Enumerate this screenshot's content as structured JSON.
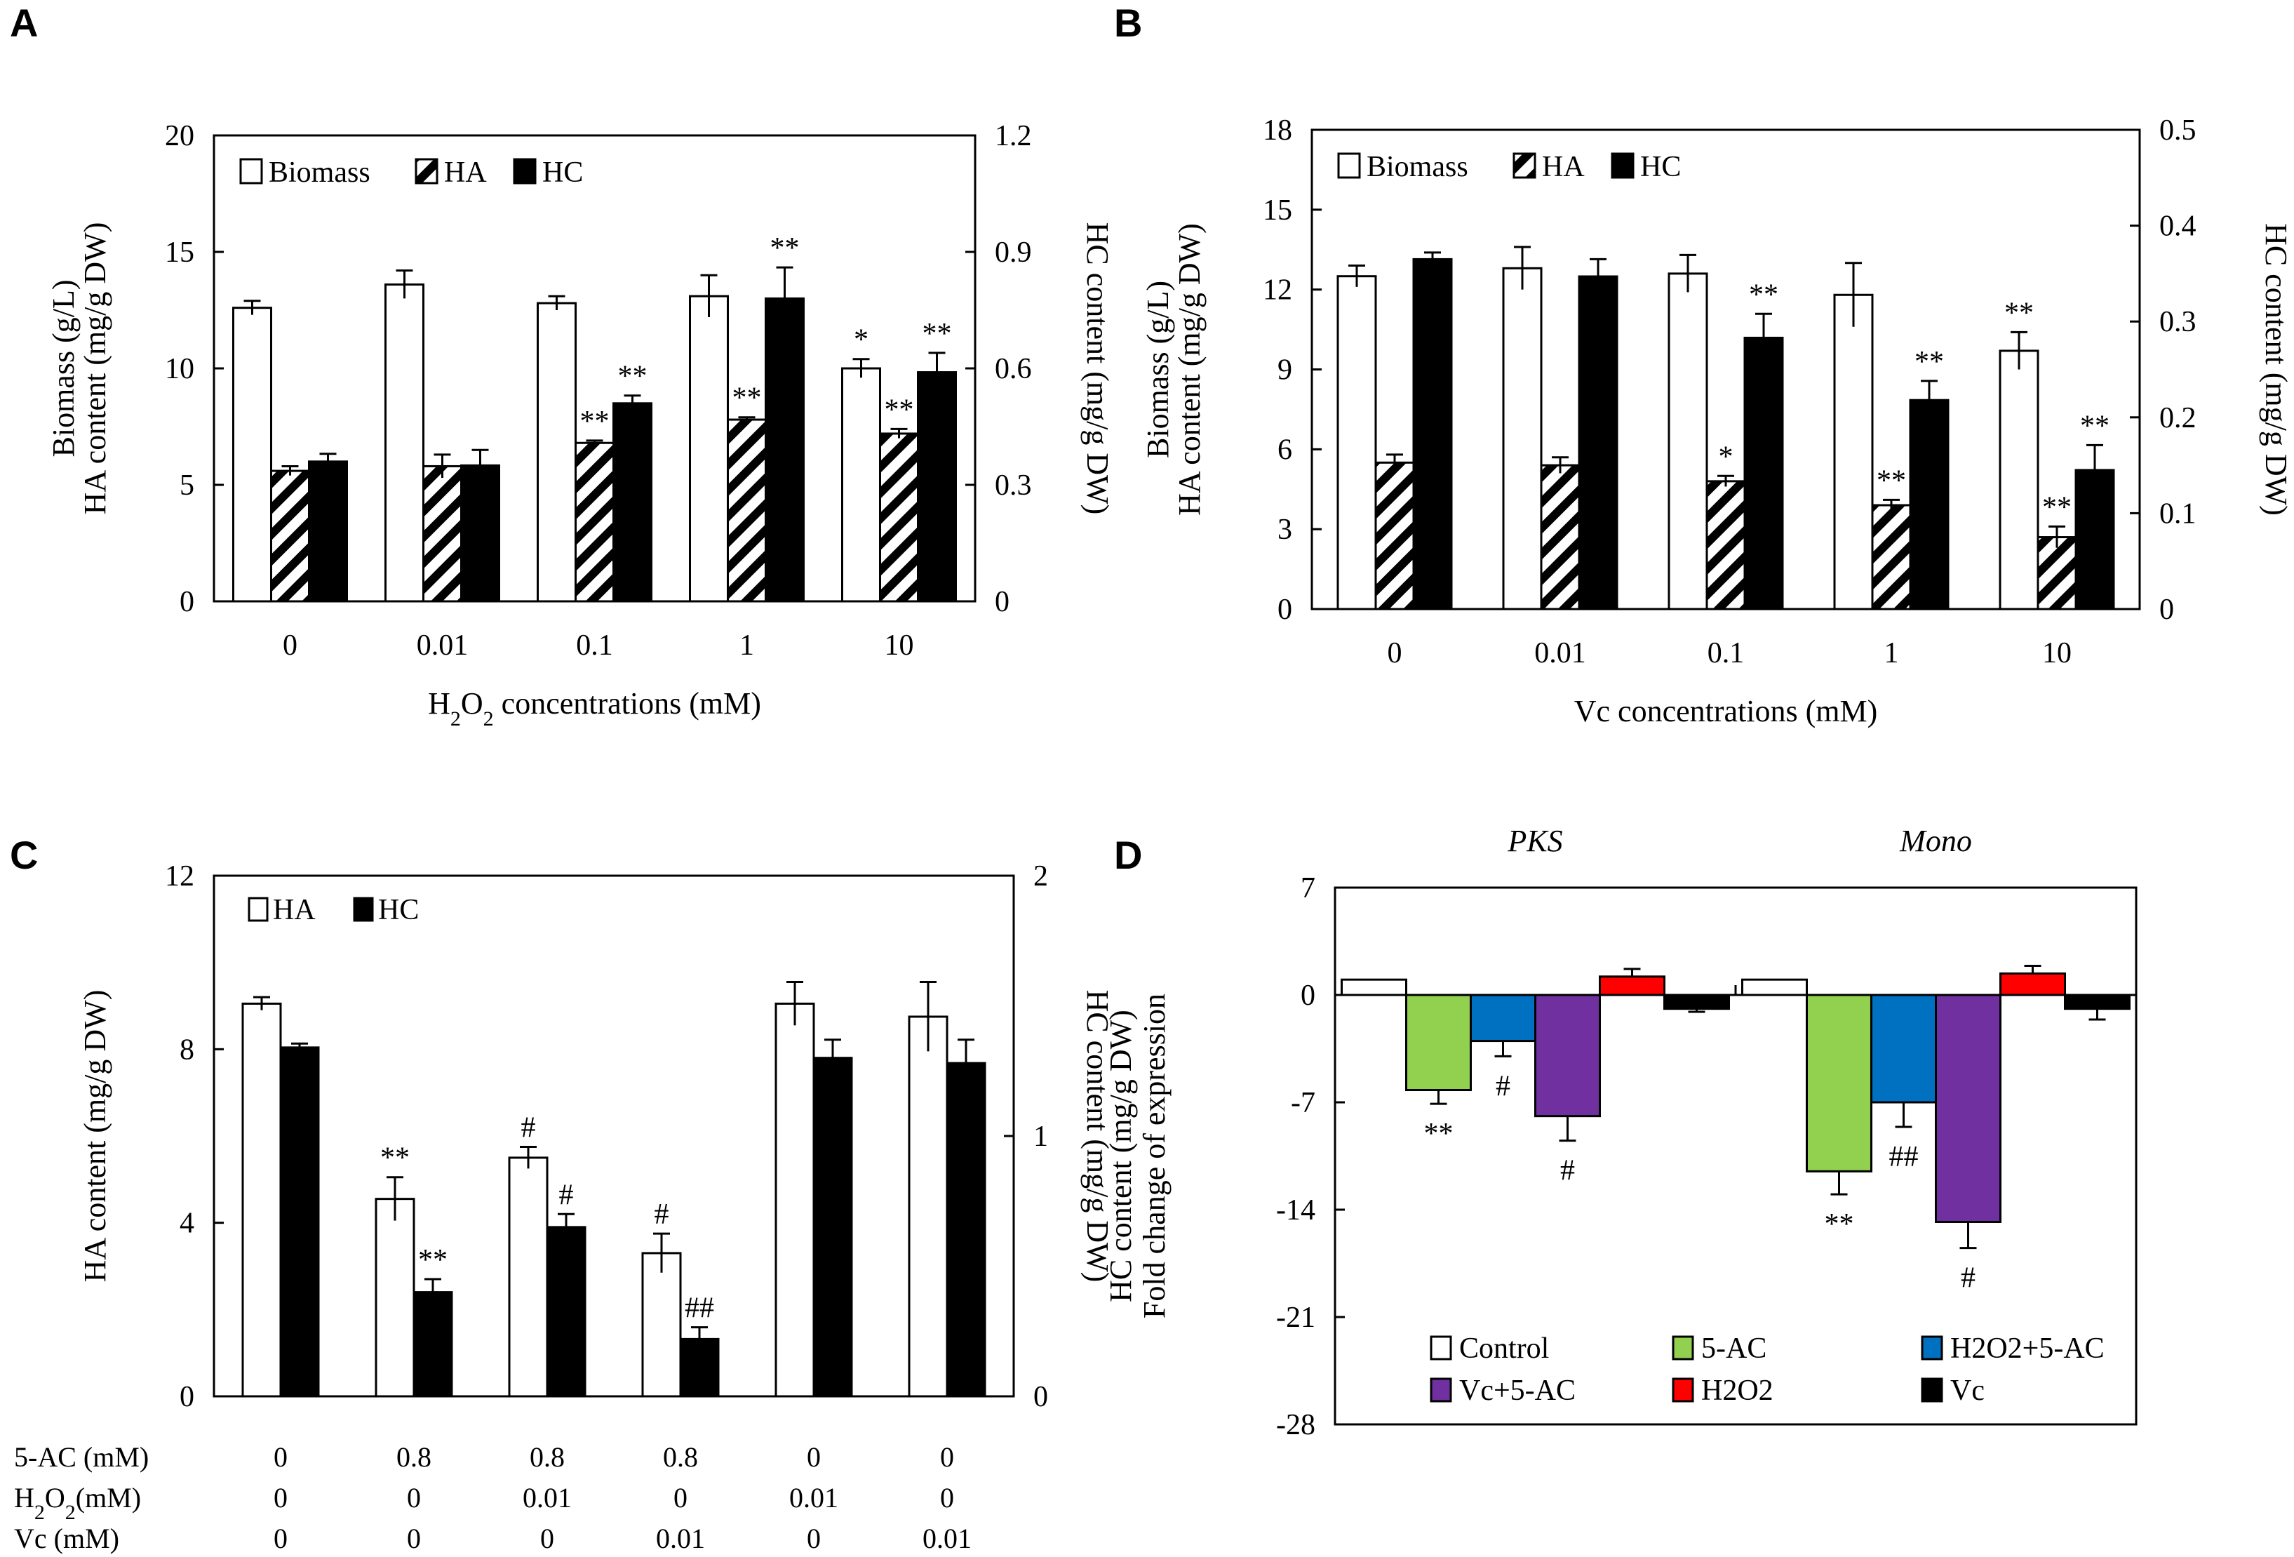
{
  "figure": {
    "panels": [
      "A",
      "B",
      "C",
      "D"
    ]
  },
  "chart_data": [
    {
      "panel": "A",
      "type": "bar",
      "xlabel_parts": [
        "H",
        "2",
        "O",
        "2",
        " concentrations (mM)"
      ],
      "ylabel_lines": [
        "Biomass (g/L)",
        "HA content (mg/g DW)"
      ],
      "y2label": "HC content (mg/g DW)",
      "categories": [
        "0",
        "0.01",
        "0.1",
        "1",
        "10"
      ],
      "ylim": [
        0,
        20
      ],
      "yticks": [
        "0",
        "5",
        "10",
        "15",
        "20"
      ],
      "y2lim": [
        0,
        1.2
      ],
      "y2ticks": [
        "0",
        "0.3",
        "0.6",
        "0.9",
        "1.2"
      ],
      "legend": [
        "Biomass",
        "HA",
        "HC"
      ],
      "series": [
        {
          "name": "Biomass",
          "axis": "left",
          "style": "white",
          "values": [
            12.6,
            13.6,
            12.8,
            13.1,
            10.0
          ],
          "errors": [
            0.3,
            0.6,
            0.3,
            0.9,
            0.4
          ],
          "sig": [
            "",
            "",
            "",
            "",
            "*"
          ]
        },
        {
          "name": "HA",
          "axis": "left",
          "style": "hatch",
          "values": [
            5.6,
            5.8,
            6.8,
            7.8,
            7.2
          ],
          "errors": [
            0.2,
            0.5,
            0.1,
            0.1,
            0.2
          ],
          "sig": [
            "",
            "",
            "**",
            "**",
            "**"
          ]
        },
        {
          "name": "HC",
          "axis": "right",
          "style": "black",
          "values": [
            0.36,
            0.35,
            0.51,
            0.78,
            0.59
          ],
          "errors": [
            0.02,
            0.04,
            0.02,
            0.08,
            0.05
          ],
          "sig": [
            "",
            "",
            "**",
            "**",
            "**"
          ]
        }
      ]
    },
    {
      "panel": "B",
      "type": "bar",
      "xlabel_parts": [
        "Vc concentrations (mM)"
      ],
      "ylabel_lines": [
        "Biomass (g/L)",
        "HA content (mg/g DW)"
      ],
      "y2label": "HC content (mg/g DW)",
      "categories": [
        "0",
        "0.01",
        "0.1",
        "1",
        "10"
      ],
      "ylim": [
        0,
        18
      ],
      "yticks": [
        "0",
        "3",
        "6",
        "9",
        "12",
        "15",
        "18"
      ],
      "y2lim": [
        0,
        0.5
      ],
      "y2ticks": [
        "0",
        "0.1",
        "0.2",
        "0.3",
        "0.4",
        "0.5"
      ],
      "legend": [
        "Biomass",
        "HA",
        "HC"
      ],
      "series": [
        {
          "name": "Biomass",
          "axis": "left",
          "style": "white",
          "values": [
            12.5,
            12.8,
            12.6,
            11.8,
            9.7
          ],
          "errors": [
            0.4,
            0.8,
            0.7,
            1.2,
            0.7
          ],
          "sig": [
            "",
            "",
            "",
            "",
            "**"
          ]
        },
        {
          "name": "HA",
          "axis": "left",
          "style": "hatch",
          "values": [
            5.5,
            5.4,
            4.8,
            3.9,
            2.7
          ],
          "errors": [
            0.3,
            0.3,
            0.2,
            0.2,
            0.4
          ],
          "sig": [
            "",
            "",
            "*",
            "**",
            "**"
          ]
        },
        {
          "name": "HC",
          "axis": "right",
          "style": "black",
          "values": [
            0.365,
            0.347,
            0.283,
            0.218,
            0.145
          ],
          "errors": [
            0.007,
            0.018,
            0.025,
            0.02,
            0.026
          ],
          "sig": [
            "",
            "",
            "**",
            "**",
            "**"
          ]
        }
      ]
    },
    {
      "panel": "C",
      "type": "bar",
      "ylabel": "HA content (mg/g DW)",
      "y2label": "HC content (mg/g DW)",
      "ylim": [
        0,
        12
      ],
      "yticks": [
        "0",
        "4",
        "8",
        "12"
      ],
      "y2lim": [
        0,
        2
      ],
      "y2ticks": [
        "0",
        "1",
        "2"
      ],
      "legend": [
        "HA",
        "HC"
      ],
      "row_labels": [
        {
          "parts": [
            "5-AC (mM)"
          ]
        },
        {
          "parts": [
            "H",
            "2",
            "O",
            "2",
            "(mM)"
          ]
        },
        {
          "parts": [
            "Vc (mM)"
          ]
        }
      ],
      "rows": [
        [
          "0",
          "0.8",
          "0.8",
          "0.8",
          "0",
          "0"
        ],
        [
          "0",
          "0",
          "0.01",
          "0",
          "0.01",
          "0"
        ],
        [
          "0",
          "0",
          "0",
          "0.01",
          "0",
          "0.01"
        ]
      ],
      "series": [
        {
          "name": "HA",
          "axis": "left",
          "style": "white",
          "values": [
            9.05,
            4.55,
            5.5,
            3.3,
            9.05,
            8.75
          ],
          "errors": [
            0.15,
            0.5,
            0.25,
            0.45,
            0.5,
            0.8
          ],
          "sig": [
            "",
            "**",
            "#",
            "#",
            "",
            ""
          ]
        },
        {
          "name": "HC",
          "axis": "right",
          "style": "black",
          "values": [
            1.34,
            0.4,
            0.65,
            0.22,
            1.3,
            1.28
          ],
          "errors": [
            0.015,
            0.05,
            0.05,
            0.045,
            0.07,
            0.09
          ],
          "sig": [
            "",
            "**",
            "#",
            "##",
            "",
            ""
          ]
        }
      ]
    },
    {
      "panel": "D",
      "type": "bar",
      "ylabel_lines": [
        "HC content (mg/g DW)",
        "Fold change of expression"
      ],
      "groups": [
        "PKS",
        "Mono"
      ],
      "ylim": [
        -28,
        7
      ],
      "yticks": [
        "-28",
        "-21",
        "-14",
        "-7",
        "0",
        "7"
      ],
      "legend": [
        "Control",
        "5-AC",
        "H2O2+5-AC",
        "Vc+5-AC",
        "H2O2",
        "Vc"
      ],
      "colors": [
        "#ffffff",
        "#92d050",
        "#0070c0",
        "#7030a0",
        "#ff0000",
        "#000000"
      ],
      "series": [
        {
          "name": "Control",
          "values": [
            1.0,
            1.0
          ],
          "errors": [
            0,
            0
          ],
          "sig": [
            "",
            ""
          ]
        },
        {
          "name": "5-AC",
          "values": [
            -6.2,
            -11.5
          ],
          "errors": [
            0.9,
            1.5
          ],
          "sig": [
            "**",
            "**"
          ]
        },
        {
          "name": "H2O2+5-AC",
          "values": [
            -3.0,
            -7.0
          ],
          "errors": [
            1.0,
            1.6
          ],
          "sig": [
            "#",
            "##"
          ]
        },
        {
          "name": "Vc+5-AC",
          "values": [
            -7.9,
            -14.8
          ],
          "errors": [
            1.6,
            1.7
          ],
          "sig": [
            "#",
            "#"
          ]
        },
        {
          "name": "H2O2",
          "values": [
            1.2,
            1.4
          ],
          "errors": [
            0.5,
            0.5
          ],
          "sig": [
            "",
            ""
          ]
        },
        {
          "name": "Vc",
          "values": [
            -0.9,
            -0.9
          ],
          "errors": [
            0.2,
            0.7
          ],
          "sig": [
            "",
            ""
          ]
        }
      ]
    }
  ]
}
